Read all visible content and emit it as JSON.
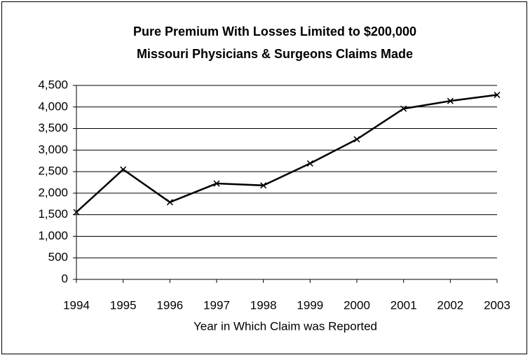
{
  "chart_data": {
    "type": "line",
    "title": "Pure Premium With Losses Limited to $200,000",
    "subtitle": "Missouri Physicians & Surgeons Claims Made",
    "x_label": "Year in Which Claim was Reported",
    "x": [
      1994,
      1995,
      1996,
      1997,
      1998,
      1999,
      2000,
      2001,
      2002,
      2003
    ],
    "series": [
      {
        "name": "Pure Premium",
        "color": "#000000",
        "marker": "x",
        "values": [
          1560,
          2550,
          1790,
          2225,
          2180,
          2690,
          3250,
          3960,
          4140,
          4280
        ]
      }
    ],
    "xlim": [
      1994,
      2003
    ],
    "xticks": [
      1994,
      1995,
      1996,
      1997,
      1998,
      1999,
      2000,
      2001,
      2002,
      2003
    ],
    "ylim": [
      0,
      4500
    ],
    "yticks": [
      0,
      500,
      {
        "value": 1000,
        "label": "1,000"
      },
      {
        "value": 1500,
        "label": "1,500"
      },
      {
        "value": 2000,
        "label": "2,000"
      },
      {
        "value": 2500,
        "label": "2,500"
      },
      {
        "value": 3000,
        "label": "3,000"
      },
      {
        "value": 3500,
        "label": "3,500"
      },
      {
        "value": 4000,
        "label": "4,000"
      },
      {
        "value": 4500,
        "label": "4,500"
      }
    ],
    "grid": true
  }
}
